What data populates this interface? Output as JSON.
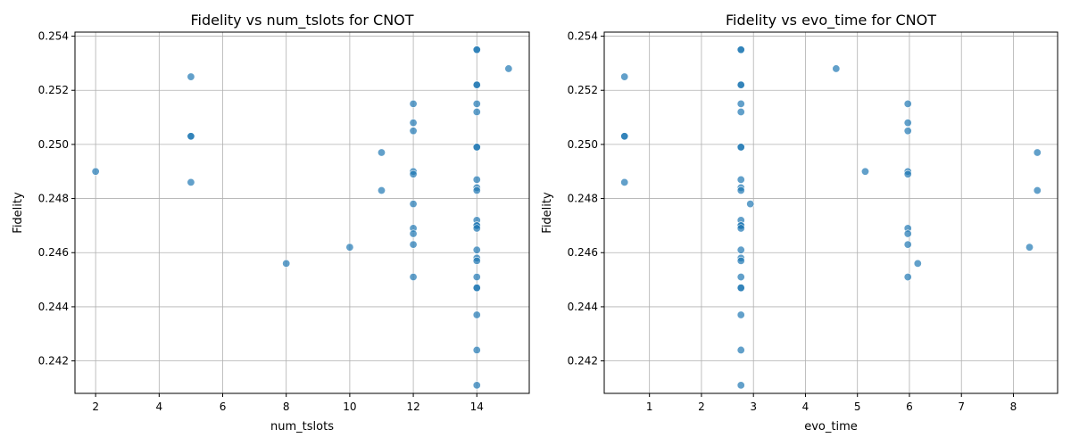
{
  "chart_data": [
    {
      "type": "scatter",
      "title": "Fidelity vs num_tslots for CNOT",
      "xlabel": "num_tslots",
      "ylabel": "Fidelity",
      "xlim": [
        1.35,
        15.65
      ],
      "ylim": [
        0.2408,
        0.25415
      ],
      "xticks": [
        2,
        4,
        6,
        8,
        10,
        12,
        14
      ],
      "yticks": [
        0.242,
        0.244,
        0.246,
        0.248,
        0.25,
        0.252,
        0.254
      ],
      "ytick_labels": [
        "0.242",
        "0.244",
        "0.246",
        "0.248",
        "0.250",
        "0.252",
        "0.254"
      ],
      "grid": true,
      "color": "#1f77b4",
      "alpha": 0.7,
      "points": [
        [
          2,
          0.249
        ],
        [
          5,
          0.2525
        ],
        [
          5,
          0.2503
        ],
        [
          5,
          0.2503
        ],
        [
          5,
          0.2486
        ],
        [
          8,
          0.2456
        ],
        [
          10,
          0.2462
        ],
        [
          11,
          0.2497
        ],
        [
          11,
          0.2483
        ],
        [
          12,
          0.2515
        ],
        [
          12,
          0.2508
        ],
        [
          12,
          0.2505
        ],
        [
          12,
          0.249
        ],
        [
          12,
          0.2489
        ],
        [
          12,
          0.2478
        ],
        [
          12,
          0.2469
        ],
        [
          12,
          0.2467
        ],
        [
          12,
          0.2463
        ],
        [
          12,
          0.2451
        ],
        [
          14,
          0.2535
        ],
        [
          14,
          0.2535
        ],
        [
          14,
          0.2522
        ],
        [
          14,
          0.2522
        ],
        [
          14,
          0.2515
        ],
        [
          14,
          0.2512
        ],
        [
          14,
          0.2499
        ],
        [
          14,
          0.2499
        ],
        [
          14,
          0.2487
        ],
        [
          14,
          0.2484
        ],
        [
          14,
          0.2483
        ],
        [
          14,
          0.2472
        ],
        [
          14,
          0.247
        ],
        [
          14,
          0.247
        ],
        [
          14,
          0.2469
        ],
        [
          14,
          0.2461
        ],
        [
          14,
          0.2458
        ],
        [
          14,
          0.2457
        ],
        [
          14,
          0.2451
        ],
        [
          14,
          0.2447
        ],
        [
          14,
          0.2447
        ],
        [
          14,
          0.2437
        ],
        [
          14,
          0.2424
        ],
        [
          14,
          0.2411
        ],
        [
          15,
          0.2528
        ]
      ]
    },
    {
      "type": "scatter",
      "title": "Fidelity vs evo_time for CNOT",
      "xlabel": "evo_time",
      "ylabel": "Fidelity",
      "xlim": [
        0.13,
        8.85
      ],
      "ylim": [
        0.2408,
        0.25415
      ],
      "xticks": [
        1,
        2,
        3,
        4,
        5,
        6,
        7,
        8
      ],
      "yticks": [
        0.242,
        0.244,
        0.246,
        0.248,
        0.25,
        0.252,
        0.254
      ],
      "ytick_labels": [
        "0.242",
        "0.244",
        "0.246",
        "0.248",
        "0.250",
        "0.252",
        "0.254"
      ],
      "grid": true,
      "color": "#1f77b4",
      "alpha": 0.7,
      "points": [
        [
          0.52,
          0.2525
        ],
        [
          0.52,
          0.2503
        ],
        [
          0.52,
          0.2503
        ],
        [
          0.52,
          0.2486
        ],
        [
          2.76,
          0.2535
        ],
        [
          2.76,
          0.2535
        ],
        [
          2.76,
          0.2522
        ],
        [
          2.76,
          0.2522
        ],
        [
          2.76,
          0.2515
        ],
        [
          2.76,
          0.2512
        ],
        [
          2.76,
          0.2499
        ],
        [
          2.76,
          0.2499
        ],
        [
          2.76,
          0.2487
        ],
        [
          2.76,
          0.2484
        ],
        [
          2.76,
          0.2483
        ],
        [
          2.76,
          0.2472
        ],
        [
          2.76,
          0.247
        ],
        [
          2.76,
          0.247
        ],
        [
          2.76,
          0.2469
        ],
        [
          2.76,
          0.2461
        ],
        [
          2.76,
          0.2458
        ],
        [
          2.76,
          0.2457
        ],
        [
          2.76,
          0.2451
        ],
        [
          2.76,
          0.2447
        ],
        [
          2.76,
          0.2447
        ],
        [
          2.76,
          0.2437
        ],
        [
          2.76,
          0.2424
        ],
        [
          2.76,
          0.2411
        ],
        [
          2.94,
          0.2478
        ],
        [
          4.59,
          0.2528
        ],
        [
          5.15,
          0.249
        ],
        [
          5.97,
          0.2515
        ],
        [
          5.97,
          0.2508
        ],
        [
          5.97,
          0.2505
        ],
        [
          5.97,
          0.249
        ],
        [
          5.97,
          0.2489
        ],
        [
          5.97,
          0.2469
        ],
        [
          5.97,
          0.2467
        ],
        [
          5.97,
          0.2463
        ],
        [
          5.97,
          0.2451
        ],
        [
          6.16,
          0.2456
        ],
        [
          8.31,
          0.2462
        ],
        [
          8.46,
          0.2497
        ],
        [
          8.46,
          0.2483
        ]
      ]
    }
  ]
}
